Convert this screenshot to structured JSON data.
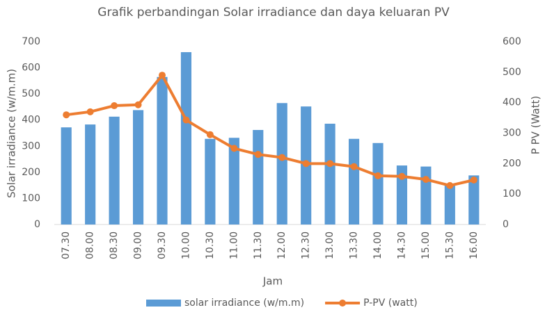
{
  "chart_data": {
    "type": "combo",
    "title": "Grafik perbandingan Solar irradiance dan daya keluaran PV",
    "x_label": "Jam",
    "y_label": "Solar irradiance (w/m.m)",
    "y2_label": "P PV (Watt)",
    "categories": [
      "07.30",
      "08.00",
      "08.30",
      "09.00",
      "09.30",
      "10.00",
      "10.30",
      "11.00",
      "11.30",
      "12.00",
      "12.30",
      "13.00",
      "13.30",
      "14.00",
      "14.30",
      "15.00",
      "15.30",
      "16.00"
    ],
    "series": [
      {
        "name": "solar irradiance (w/m.m)",
        "kind": "bar",
        "color": "#5b9bd5",
        "axis": "y",
        "values": [
          372,
          383,
          413,
          438,
          565,
          660,
          328,
          332,
          362,
          465,
          452,
          386,
          328,
          312,
          226,
          222,
          155,
          188
        ]
      },
      {
        "name": "P-PV (watt)",
        "kind": "line",
        "color": "#ed7d31",
        "axis": "y2",
        "values": [
          360,
          370,
          390,
          393,
          490,
          343,
          295,
          250,
          230,
          220,
          200,
          200,
          190,
          160,
          158,
          148,
          128,
          146
        ]
      }
    ],
    "ylim": [
      0,
      700
    ],
    "yticks": [
      0,
      100,
      200,
      300,
      400,
      500,
      600,
      700
    ],
    "y2lim": [
      0,
      600
    ],
    "y2ticks": [
      0,
      100,
      200,
      300,
      400,
      500,
      600
    ],
    "grid": false,
    "legend": "bottom"
  }
}
